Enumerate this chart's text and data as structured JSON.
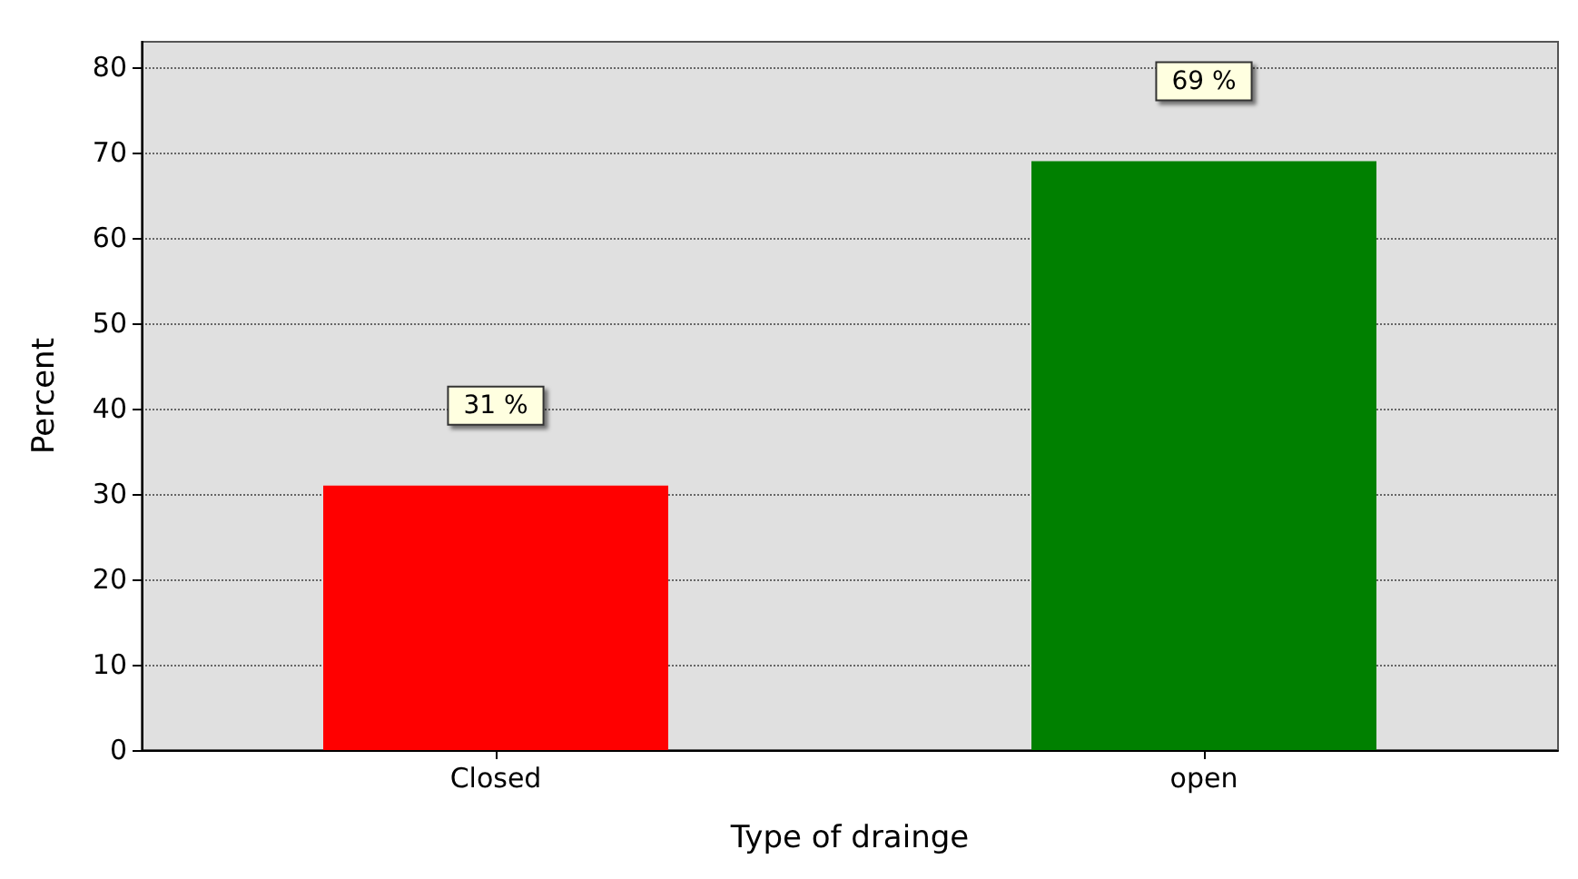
{
  "chart_data": {
    "type": "bar",
    "xlabel": "Type of drainge",
    "ylabel": "Percent",
    "categories": [
      "Closed",
      "open"
    ],
    "values": [
      31,
      69
    ],
    "colors": [
      "#ff0000",
      "#008000"
    ],
    "value_labels": [
      "31 %",
      "69 %"
    ],
    "ylim": [
      0,
      83
    ],
    "yticks": [
      0,
      10,
      20,
      30,
      40,
      50,
      60,
      70,
      80
    ],
    "grid": "y"
  }
}
